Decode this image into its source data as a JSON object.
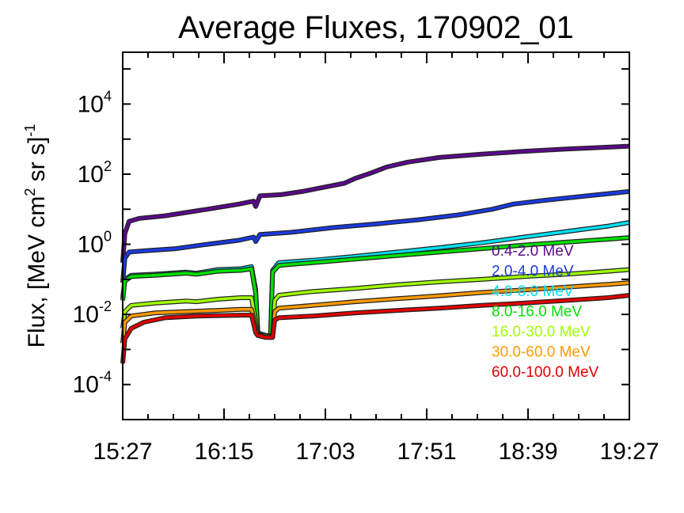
{
  "chart_data": {
    "type": "line",
    "title": "Average Fluxes, 170902_01",
    "xlabel": "",
    "ylabel": {
      "prefix": "Flux, [MeV cm",
      "sup1": "2",
      "middle": " sr s]",
      "sup2": "-1"
    },
    "x_ticks": [
      "15:27",
      "16:15",
      "17:03",
      "17:51",
      "18:39",
      "19:27"
    ],
    "x_range_minutes": [
      0,
      240
    ],
    "y_scale": "log",
    "ylim": [
      1e-05,
      300000
    ],
    "y_ticks": [
      {
        "base": "10",
        "exp": "4",
        "value": 10000
      },
      {
        "base": "10",
        "exp": "2",
        "value": 100
      },
      {
        "base": "10",
        "exp": "0",
        "value": 1
      },
      {
        "base": "10",
        "exp": "-2",
        "value": 0.01
      },
      {
        "base": "10",
        "exp": "-4",
        "value": 0.0001
      }
    ],
    "legend_position": "right",
    "series": [
      {
        "name": "0.4-2.0 MeV",
        "color": "#5a0a8c",
        "points": [
          [
            0,
            0.3
          ],
          [
            1,
            2
          ],
          [
            3,
            4.5
          ],
          [
            8,
            5.5
          ],
          [
            20,
            6.5
          ],
          [
            40,
            10
          ],
          [
            55,
            14
          ],
          [
            62,
            17
          ],
          [
            63,
            12
          ],
          [
            65,
            24
          ],
          [
            75,
            26
          ],
          [
            85,
            32
          ],
          [
            95,
            42
          ],
          [
            105,
            55
          ],
          [
            110,
            75
          ],
          [
            118,
            110
          ],
          [
            125,
            160
          ],
          [
            135,
            220
          ],
          [
            150,
            300
          ],
          [
            170,
            370
          ],
          [
            190,
            450
          ],
          [
            210,
            520
          ],
          [
            230,
            590
          ],
          [
            240,
            630
          ]
        ]
      },
      {
        "name": "2.0-4.0 MeV",
        "color": "#1a3ae0",
        "points": [
          [
            0,
            0.08
          ],
          [
            1,
            0.4
          ],
          [
            3,
            0.6
          ],
          [
            10,
            0.65
          ],
          [
            25,
            0.75
          ],
          [
            40,
            1
          ],
          [
            55,
            1.3
          ],
          [
            62,
            1.6
          ],
          [
            63,
            1.2
          ],
          [
            65,
            1.9
          ],
          [
            80,
            2.2
          ],
          [
            100,
            3
          ],
          [
            120,
            3.8
          ],
          [
            140,
            5
          ],
          [
            160,
            7
          ],
          [
            175,
            10
          ],
          [
            185,
            14
          ],
          [
            200,
            18
          ],
          [
            220,
            24
          ],
          [
            240,
            32
          ]
        ]
      },
      {
        "name": "4.0-8.0 MeV",
        "color": "#00e0f0",
        "points": [
          [
            0,
            0.03
          ],
          [
            1,
            0.1
          ],
          [
            4,
            0.13
          ],
          [
            15,
            0.14
          ],
          [
            30,
            0.16
          ],
          [
            35,
            0.15
          ],
          [
            45,
            0.19
          ],
          [
            56,
            0.2
          ],
          [
            61,
            0.23
          ],
          [
            63,
            0.05
          ],
          [
            64,
            0.003
          ],
          [
            66,
            0.0027
          ],
          [
            70,
            0.0023
          ],
          [
            71,
            0.18
          ],
          [
            74,
            0.3
          ],
          [
            90,
            0.35
          ],
          [
            110,
            0.45
          ],
          [
            130,
            0.6
          ],
          [
            150,
            0.8
          ],
          [
            170,
            1.1
          ],
          [
            190,
            1.6
          ],
          [
            210,
            2.3
          ],
          [
            230,
            3.3
          ],
          [
            240,
            4.2
          ]
        ]
      },
      {
        "name": "8.0-16.0 MeV",
        "color": "#00e000",
        "points": [
          [
            0,
            0.025
          ],
          [
            1,
            0.09
          ],
          [
            4,
            0.12
          ],
          [
            15,
            0.13
          ],
          [
            30,
            0.15
          ],
          [
            35,
            0.14
          ],
          [
            45,
            0.17
          ],
          [
            56,
            0.18
          ],
          [
            61,
            0.2
          ],
          [
            63,
            0.04
          ],
          [
            64,
            0.0028
          ],
          [
            66,
            0.0026
          ],
          [
            70,
            0.0022
          ],
          [
            71,
            0.16
          ],
          [
            74,
            0.25
          ],
          [
            90,
            0.3
          ],
          [
            110,
            0.38
          ],
          [
            130,
            0.48
          ],
          [
            150,
            0.6
          ],
          [
            170,
            0.75
          ],
          [
            190,
            0.95
          ],
          [
            210,
            1.15
          ],
          [
            230,
            1.4
          ],
          [
            240,
            1.55
          ]
        ]
      },
      {
        "name": "16.0-30.0 MeV",
        "color": "#a0ff00",
        "points": [
          [
            0,
            0.004
          ],
          [
            1,
            0.012
          ],
          [
            4,
            0.018
          ],
          [
            15,
            0.021
          ],
          [
            30,
            0.024
          ],
          [
            35,
            0.023
          ],
          [
            45,
            0.027
          ],
          [
            56,
            0.03
          ],
          [
            61,
            0.03
          ],
          [
            63,
            0.006
          ],
          [
            64,
            0.0027
          ],
          [
            68,
            0.0025
          ],
          [
            71,
            0.0024
          ],
          [
            72,
            0.025
          ],
          [
            74,
            0.035
          ],
          [
            90,
            0.045
          ],
          [
            110,
            0.055
          ],
          [
            130,
            0.07
          ],
          [
            150,
            0.085
          ],
          [
            170,
            0.1
          ],
          [
            190,
            0.12
          ],
          [
            210,
            0.14
          ],
          [
            230,
            0.17
          ],
          [
            240,
            0.19
          ]
        ]
      },
      {
        "name": "30.0-60.0 MeV",
        "color": "#ff9a00",
        "points": [
          [
            0,
            0.0015
          ],
          [
            1,
            0.006
          ],
          [
            4,
            0.009
          ],
          [
            15,
            0.011
          ],
          [
            30,
            0.012
          ],
          [
            45,
            0.013
          ],
          [
            56,
            0.014
          ],
          [
            61,
            0.014
          ],
          [
            63,
            0.004
          ],
          [
            64,
            0.0026
          ],
          [
            68,
            0.0024
          ],
          [
            71,
            0.0023
          ],
          [
            72,
            0.012
          ],
          [
            74,
            0.015
          ],
          [
            90,
            0.018
          ],
          [
            110,
            0.023
          ],
          [
            130,
            0.028
          ],
          [
            150,
            0.034
          ],
          [
            170,
            0.042
          ],
          [
            190,
            0.05
          ],
          [
            210,
            0.06
          ],
          [
            230,
            0.072
          ],
          [
            240,
            0.08
          ]
        ]
      },
      {
        "name": "60.0-100.0 MeV",
        "color": "#e00000",
        "points": [
          [
            0,
            0.0004
          ],
          [
            1,
            0.002
          ],
          [
            4,
            0.004
          ],
          [
            10,
            0.006
          ],
          [
            20,
            0.008
          ],
          [
            35,
            0.009
          ],
          [
            56,
            0.0095
          ],
          [
            61,
            0.0095
          ],
          [
            63,
            0.003
          ],
          [
            64,
            0.0025
          ],
          [
            68,
            0.0022
          ],
          [
            71,
            0.0022
          ],
          [
            72,
            0.007
          ],
          [
            74,
            0.008
          ],
          [
            90,
            0.009
          ],
          [
            110,
            0.011
          ],
          [
            130,
            0.013
          ],
          [
            150,
            0.015
          ],
          [
            170,
            0.018
          ],
          [
            190,
            0.021
          ],
          [
            210,
            0.025
          ],
          [
            230,
            0.03
          ],
          [
            240,
            0.035
          ]
        ]
      }
    ]
  }
}
